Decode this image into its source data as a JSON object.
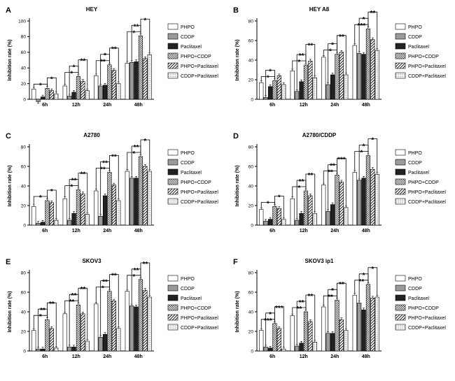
{
  "series_names": [
    "PHPO",
    "CDDP",
    "Paclitaxel",
    "PHPO+CDDP",
    "PHPO+Paclitaxel",
    "CDDP+Paclitaxel"
  ],
  "categories": [
    "6h",
    "12h",
    "24h",
    "48h"
  ],
  "ylabel": "Inhibition rate (%)",
  "chart_data": [
    {
      "type": "bar",
      "letter": "A",
      "title": "HEY",
      "ylabel": "Inhibition rate (%)",
      "ylim": [
        0,
        100
      ],
      "yticks": [
        "0",
        "20",
        "40",
        "60",
        "80",
        "100"
      ],
      "categories": [
        "6h",
        "12h",
        "24h",
        "48h"
      ],
      "series": [
        {
          "name": "PHPO",
          "values": [
            13,
            17,
            30,
            46
          ]
        },
        {
          "name": "CDDP",
          "values": [
            -3,
            4,
            17,
            47
          ]
        },
        {
          "name": "Paclitaxel",
          "values": [
            3,
            9,
            18,
            48
          ]
        },
        {
          "name": "PHPO+CDDP",
          "values": [
            14,
            29,
            44,
            81
          ]
        },
        {
          "name": "PHPO+Paclitaxel",
          "values": [
            11,
            23,
            37,
            52
          ]
        },
        {
          "name": "CDDP+Paclitaxel",
          "values": [
            7,
            11,
            20,
            57
          ]
        }
      ],
      "significance": [
        {
          "group": "6h",
          "from": "PHPO",
          "to": "PHPO+CDDP",
          "label": "*"
        },
        {
          "group": "6h",
          "from": "PHPO+CDDP",
          "to": "CDDP+Paclitaxel",
          "label": "*"
        },
        {
          "group": "12h",
          "from": "PHPO",
          "to": "PHPO+CDDP",
          "label": "*"
        },
        {
          "group": "12h",
          "from": "CDDP",
          "to": "PHPO+CDDP",
          "label": "*"
        },
        {
          "group": "12h",
          "from": "PHPO+CDDP",
          "to": "CDDP+Paclitaxel",
          "label": "**"
        },
        {
          "group": "24h",
          "from": "PHPO",
          "to": "PHPO+CDDP",
          "label": "**"
        },
        {
          "group": "24h",
          "from": "CDDP",
          "to": "PHPO+CDDP",
          "label": "*"
        },
        {
          "group": "24h",
          "from": "PHPO+CDDP",
          "to": "CDDP+Paclitaxel",
          "label": "**"
        },
        {
          "group": "48h",
          "from": "PHPO",
          "to": "PHPO+CDDP",
          "label": "*"
        },
        {
          "group": "48h",
          "from": "CDDP",
          "to": "PHPO+CDDP",
          "label": "**"
        },
        {
          "group": "48h",
          "from": "PHPO+CDDP",
          "to": "CDDP+Paclitaxel",
          "label": "*"
        }
      ]
    },
    {
      "type": "bar",
      "letter": "B",
      "title": "HEY A8",
      "ylabel": "Inhibition rate (%)",
      "ylim": [
        0,
        80
      ],
      "yticks": [
        "0",
        "20",
        "40",
        "60",
        "80"
      ],
      "categories": [
        "6h",
        "12h",
        "24h",
        "48h"
      ],
      "series": [
        {
          "name": "PHPO",
          "values": [
            17,
            29,
            43,
            55
          ]
        },
        {
          "name": "CDDP",
          "values": [
            2,
            8,
            15,
            47
          ]
        },
        {
          "name": "Paclitaxel",
          "values": [
            13,
            18,
            25,
            46
          ]
        },
        {
          "name": "PHPO+CDDP",
          "values": [
            19,
            35,
            46,
            72
          ]
        },
        {
          "name": "PHPO+Paclitaxel",
          "values": [
            24,
            39,
            48,
            61
          ]
        },
        {
          "name": "CDDP+Paclitaxel",
          "values": [
            15,
            22,
            25,
            50
          ]
        }
      ],
      "significance": [
        {
          "group": "6h",
          "from": "PHPO",
          "to": "PHPO+CDDP",
          "label": "*"
        },
        {
          "group": "6h",
          "from": "CDDP",
          "to": "PHPO+CDDP",
          "label": "*"
        },
        {
          "group": "12h",
          "from": "PHPO",
          "to": "PHPO+CDDP",
          "label": "*"
        },
        {
          "group": "12h",
          "from": "CDDP",
          "to": "PHPO+CDDP",
          "label": "**"
        },
        {
          "group": "12h",
          "from": "PHPO+CDDP",
          "to": "CDDP+Paclitaxel",
          "label": "**"
        },
        {
          "group": "24h",
          "from": "PHPO",
          "to": "PHPO+CDDP",
          "label": "*"
        },
        {
          "group": "24h",
          "from": "CDDP",
          "to": "PHPO+CDDP",
          "label": "*"
        },
        {
          "group": "24h",
          "from": "PHPO+CDDP",
          "to": "CDDP+Paclitaxel",
          "label": "**"
        },
        {
          "group": "48h",
          "from": "PHPO",
          "to": "PHPO+CDDP",
          "label": "***"
        },
        {
          "group": "48h",
          "from": "CDDP",
          "to": "PHPO+CDDP",
          "label": "*"
        },
        {
          "group": "48h",
          "from": "PHPO+CDDP",
          "to": "CDDP+Paclitaxel",
          "label": "**"
        }
      ]
    },
    {
      "type": "bar",
      "letter": "C",
      "title": "A2780",
      "ylabel": "Inhibition rate (%)",
      "ylim": [
        0,
        80
      ],
      "yticks": [
        "0",
        "20",
        "40",
        "60",
        "80"
      ],
      "categories": [
        "6h",
        "12h",
        "24h",
        "48h"
      ],
      "series": [
        {
          "name": "PHPO",
          "values": [
            19,
            27,
            35,
            55
          ]
        },
        {
          "name": "CDDP",
          "values": [
            2,
            5,
            9,
            48
          ]
        },
        {
          "name": "Paclitaxel",
          "values": [
            3,
            12,
            30,
            48
          ]
        },
        {
          "name": "PHPO+CDDP",
          "values": [
            25,
            36,
            54,
            70
          ]
        },
        {
          "name": "PHPO+Paclitaxel",
          "values": [
            23,
            32,
            41,
            60
          ]
        },
        {
          "name": "CDDP+Paclitaxel",
          "values": [
            5,
            11,
            25,
            55
          ]
        }
      ],
      "significance": [
        {
          "group": "6h",
          "from": "PHPO",
          "to": "PHPO+CDDP",
          "label": "*"
        },
        {
          "group": "6h",
          "from": "PHPO+CDDP",
          "to": "CDDP+Paclitaxel",
          "label": "*"
        },
        {
          "group": "12h",
          "from": "PHPO",
          "to": "PHPO+CDDP",
          "label": "*"
        },
        {
          "group": "12h",
          "from": "CDDP",
          "to": "PHPO+CDDP",
          "label": "**"
        },
        {
          "group": "12h",
          "from": "PHPO+CDDP",
          "to": "CDDP+Paclitaxel",
          "label": "**"
        },
        {
          "group": "24h",
          "from": "PHPO",
          "to": "PHPO+CDDP",
          "label": "**"
        },
        {
          "group": "24h",
          "from": "CDDP",
          "to": "PHPO+CDDP",
          "label": "**"
        },
        {
          "group": "24h",
          "from": "PHPO+CDDP",
          "to": "CDDP+Paclitaxel",
          "label": "**"
        },
        {
          "group": "48h",
          "from": "PHPO",
          "to": "PHPO+CDDP",
          "label": "*"
        },
        {
          "group": "48h",
          "from": "CDDP",
          "to": "PHPO+CDDP",
          "label": "**"
        },
        {
          "group": "48h",
          "from": "PHPO+CDDP",
          "to": "CDDP+Paclitaxel",
          "label": "*"
        }
      ]
    },
    {
      "type": "bar",
      "letter": "D",
      "title": "A2780/CDDP",
      "ylabel": "Inhibition rate (%)",
      "ylim": [
        0,
        80
      ],
      "yticks": [
        "0",
        "20",
        "40",
        "60",
        "80"
      ],
      "categories": [
        "6h",
        "12h",
        "24h",
        "48h"
      ],
      "series": [
        {
          "name": "PHPO",
          "values": [
            16,
            27,
            41,
            54
          ]
        },
        {
          "name": "CDDP",
          "values": [
            4,
            5,
            14,
            46
          ]
        },
        {
          "name": "Paclitaxel",
          "values": [
            6,
            12,
            21,
            48
          ]
        },
        {
          "name": "PHPO+CDDP",
          "values": [
            19,
            35,
            51,
            71
          ]
        },
        {
          "name": "PHPO+Paclitaxel",
          "values": [
            17,
            30,
            44,
            57
          ]
        },
        {
          "name": "CDDP+Paclitaxel",
          "values": [
            6,
            12,
            18,
            52
          ]
        }
      ],
      "significance": [
        {
          "group": "6h",
          "from": "PHPO",
          "to": "PHPO+CDDP",
          "label": "*"
        },
        {
          "group": "6h",
          "from": "PHPO+CDDP",
          "to": "CDDP+Paclitaxel",
          "label": "*"
        },
        {
          "group": "12h",
          "from": "PHPO",
          "to": "PHPO+CDDP",
          "label": "*"
        },
        {
          "group": "12h",
          "from": "CDDP",
          "to": "PHPO+CDDP",
          "label": "**"
        },
        {
          "group": "12h",
          "from": "PHPO+CDDP",
          "to": "CDDP+Paclitaxel",
          "label": "**"
        },
        {
          "group": "24h",
          "from": "PHPO",
          "to": "PHPO+CDDP",
          "label": "**"
        },
        {
          "group": "24h",
          "from": "CDDP",
          "to": "PHPO+CDDP",
          "label": "**"
        },
        {
          "group": "24h",
          "from": "PHPO+CDDP",
          "to": "CDDP+Paclitaxel",
          "label": "***"
        },
        {
          "group": "48h",
          "from": "PHPO",
          "to": "PHPO+CDDP",
          "label": "*"
        },
        {
          "group": "48h",
          "from": "CDDP",
          "to": "PHPO+CDDP",
          "label": "*"
        },
        {
          "group": "48h",
          "from": "PHPO+CDDP",
          "to": "CDDP+Paclitaxel",
          "label": "*"
        }
      ]
    },
    {
      "type": "bar",
      "letter": "E",
      "title": "SKOV3",
      "ylabel": "Inhibition rate (%)",
      "ylim": [
        0,
        80
      ],
      "yticks": [
        "0",
        "20",
        "40",
        "60",
        "80"
      ],
      "categories": [
        "6h",
        "12h",
        "24h",
        "48h"
      ],
      "series": [
        {
          "name": "PHPO",
          "values": [
            21,
            38,
            48,
            61
          ]
        },
        {
          "name": "CDDP",
          "values": [
            2,
            4,
            14,
            46
          ]
        },
        {
          "name": "Paclitaxel",
          "values": [
            2,
            4,
            17,
            45
          ]
        },
        {
          "name": "PHPO+CDDP",
          "values": [
            32,
            47,
            61,
            73
          ]
        },
        {
          "name": "PHPO+Paclitaxel",
          "values": [
            23,
            38,
            51,
            62
          ]
        },
        {
          "name": "CDDP+Paclitaxel",
          "values": [
            3,
            10,
            23,
            55
          ]
        }
      ],
      "significance": [
        {
          "group": "6h",
          "from": "PHPO",
          "to": "PHPO+CDDP",
          "label": "*"
        },
        {
          "group": "6h",
          "from": "CDDP",
          "to": "PHPO+CDDP",
          "label": "**"
        },
        {
          "group": "6h",
          "from": "PHPO+CDDP",
          "to": "CDDP+Paclitaxel",
          "label": "**"
        },
        {
          "group": "12h",
          "from": "PHPO",
          "to": "PHPO+CDDP",
          "label": "**"
        },
        {
          "group": "12h",
          "from": "CDDP",
          "to": "PHPO+CDDP",
          "label": "**"
        },
        {
          "group": "12h",
          "from": "PHPO+CDDP",
          "to": "CDDP+Paclitaxel",
          "label": "**"
        },
        {
          "group": "24h",
          "from": "PHPO",
          "to": "PHPO+CDDP",
          "label": "*"
        },
        {
          "group": "24h",
          "from": "CDDP",
          "to": "PHPO+CDDP",
          "label": "**"
        },
        {
          "group": "24h",
          "from": "PHPO+CDDP",
          "to": "CDDP+Paclitaxel",
          "label": "**"
        },
        {
          "group": "48h",
          "from": "PHPO",
          "to": "PHPO+CDDP",
          "label": "*"
        },
        {
          "group": "48h",
          "from": "CDDP",
          "to": "PHPO+CDDP",
          "label": "**"
        },
        {
          "group": "48h",
          "from": "PHPO+CDDP",
          "to": "CDDP+Paclitaxel",
          "label": "**"
        }
      ]
    },
    {
      "type": "bar",
      "letter": "F",
      "title": "SKOV3 ip1",
      "ylabel": "Inhibition rate (%)",
      "ylim": [
        0,
        80
      ],
      "yticks": [
        "0",
        "20",
        "40",
        "60",
        "80"
      ],
      "categories": [
        "6h",
        "12h",
        "24h",
        "48h"
      ],
      "series": [
        {
          "name": "PHPO",
          "values": [
            21,
            36,
            45,
            57
          ]
        },
        {
          "name": "CDDP",
          "values": [
            4,
            5,
            18,
            49
          ]
        },
        {
          "name": "Paclitaxel",
          "values": [
            3,
            8,
            18,
            42
          ]
        },
        {
          "name": "PHPO+CDDP",
          "values": [
            28,
            40,
            52,
            68
          ]
        },
        {
          "name": "PHPO+Paclitaxel",
          "values": [
            23,
            30,
            32,
            54
          ]
        },
        {
          "name": "CDDP+Paclitaxel",
          "values": [
            2,
            9,
            21,
            55
          ]
        }
      ],
      "significance": [
        {
          "group": "6h",
          "from": "PHPO",
          "to": "PHPO+CDDP",
          "label": "***"
        },
        {
          "group": "6h",
          "from": "CDDP",
          "to": "PHPO+CDDP",
          "label": "*"
        },
        {
          "group": "6h",
          "from": "PHPO+CDDP",
          "to": "CDDP+Paclitaxel",
          "label": "***"
        },
        {
          "group": "12h",
          "from": "PHPO",
          "to": "PHPO+CDDP",
          "label": "**"
        },
        {
          "group": "12h",
          "from": "CDDP",
          "to": "PHPO+CDDP",
          "label": "**"
        },
        {
          "group": "12h",
          "from": "PHPO+CDDP",
          "to": "CDDP+Paclitaxel",
          "label": "**"
        },
        {
          "group": "24h",
          "from": "PHPO",
          "to": "PHPO+CDDP",
          "label": "**"
        },
        {
          "group": "24h",
          "from": "CDDP",
          "to": "PHPO+CDDP",
          "label": "*"
        },
        {
          "group": "24h",
          "from": "PHPO+CDDP",
          "to": "CDDP+Paclitaxel",
          "label": "**"
        },
        {
          "group": "48h",
          "from": "PHPO",
          "to": "PHPO+CDDP",
          "label": "**"
        },
        {
          "group": "48h",
          "from": "CDDP",
          "to": "PHPO+CDDP",
          "label": "*"
        },
        {
          "group": "48h",
          "from": "PHPO+CDDP",
          "to": "CDDP+Paclitaxel",
          "label": "*"
        }
      ]
    }
  ]
}
